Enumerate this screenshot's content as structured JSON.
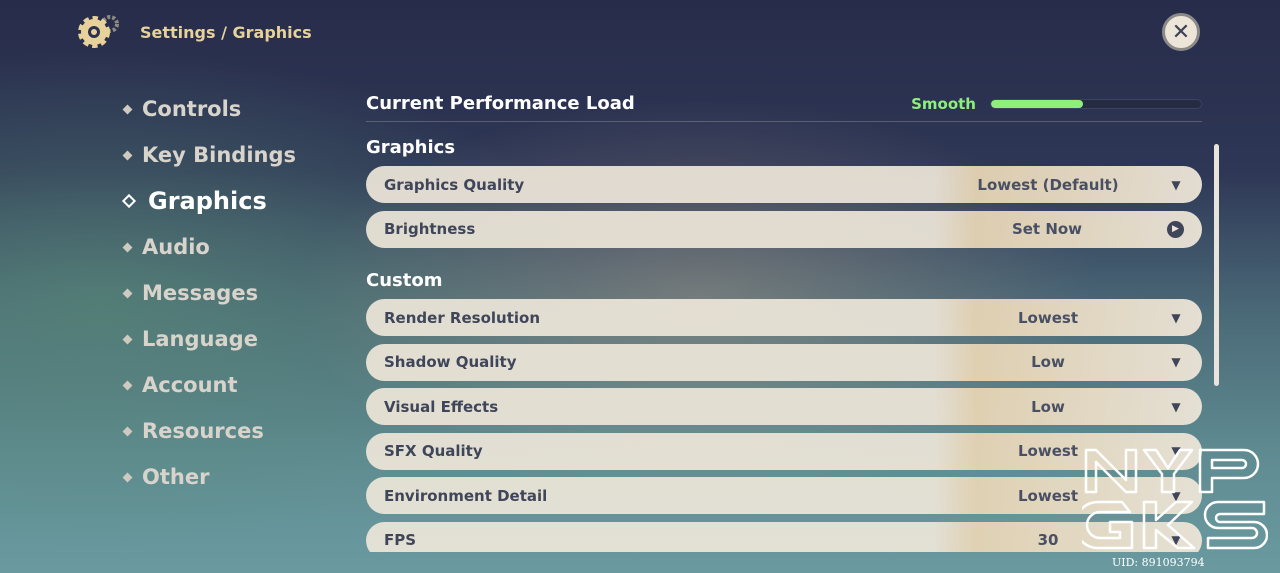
{
  "header": {
    "breadcrumb": "Settings / Graphics",
    "icon": "gear-icon"
  },
  "close_icon": "close-icon",
  "sidebar": {
    "items": [
      {
        "label": "Controls",
        "active": false
      },
      {
        "label": "Key Bindings",
        "active": false
      },
      {
        "label": "Graphics",
        "active": true
      },
      {
        "label": "Audio",
        "active": false
      },
      {
        "label": "Messages",
        "active": false
      },
      {
        "label": "Language",
        "active": false
      },
      {
        "label": "Account",
        "active": false
      },
      {
        "label": "Resources",
        "active": false
      },
      {
        "label": "Other",
        "active": false
      }
    ]
  },
  "performance": {
    "label": "Current Performance Load",
    "status": "Smooth",
    "load_percent": 44,
    "color": "#8ef07a"
  },
  "sections": [
    {
      "title": "Graphics",
      "rows": [
        {
          "name": "Graphics Quality",
          "value": "Lowest (Default)",
          "type": "dropdown"
        },
        {
          "name": "Brightness",
          "value": "Set Now",
          "type": "action"
        }
      ]
    },
    {
      "title": "Custom",
      "rows": [
        {
          "name": "Render Resolution",
          "value": "Lowest",
          "type": "dropdown"
        },
        {
          "name": "Shadow Quality",
          "value": "Low",
          "type": "dropdown"
        },
        {
          "name": "Visual Effects",
          "value": "Low",
          "type": "dropdown"
        },
        {
          "name": "SFX Quality",
          "value": "Lowest",
          "type": "dropdown"
        },
        {
          "name": "Environment Detail",
          "value": "Lowest",
          "type": "dropdown"
        },
        {
          "name": "FPS",
          "value": "30",
          "type": "dropdown"
        }
      ]
    }
  ],
  "watermark": {
    "text": "NYP GKS",
    "uid": "UID: 891093794"
  }
}
